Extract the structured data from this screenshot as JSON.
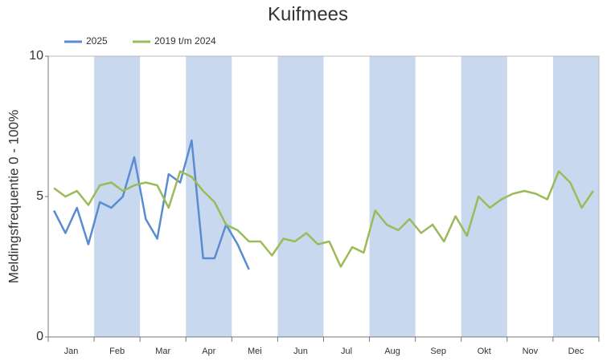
{
  "chart_data": {
    "type": "line",
    "title": "Kuifmees",
    "y_label": "Meldingsfrequentie 0 - 100%",
    "categories": [
      null,
      null,
      "Jan",
      null,
      null,
      null,
      "Feb",
      null,
      null,
      null,
      "Mar",
      null,
      null,
      null,
      "Apr",
      null,
      null,
      null,
      "Mei",
      null,
      null,
      null,
      "Jun",
      null,
      null,
      null,
      "Jul",
      null,
      null,
      null,
      "Aug",
      null,
      null,
      null,
      "Sep",
      null,
      null,
      null,
      "Okt",
      null,
      null,
      null,
      "Nov",
      null,
      null,
      null,
      "Dec",
      null
    ],
    "series": [
      {
        "name": "2025",
        "color": "#5b8bd0",
        "values": [
          4.5,
          3.7,
          4.6,
          3.3,
          4.8,
          4.6,
          5.0,
          6.4,
          4.2,
          3.5,
          5.8,
          5.5,
          7.0,
          2.8,
          2.8,
          4.0,
          3.3,
          2.4,
          null,
          null,
          null,
          null,
          null,
          null,
          null,
          null,
          null,
          null,
          null,
          null,
          null,
          null,
          null,
          null,
          null,
          null,
          null,
          null,
          null,
          null,
          null,
          null,
          null,
          null,
          null,
          null,
          null,
          null
        ]
      },
      {
        "name": "2019 t/m 2024",
        "color": "#9bbb59",
        "values": [
          5.3,
          5.0,
          5.2,
          4.7,
          5.4,
          5.5,
          5.2,
          5.4,
          5.5,
          5.4,
          4.6,
          5.9,
          5.7,
          5.2,
          4.8,
          4.0,
          3.8,
          3.4,
          3.4,
          2.9,
          3.5,
          3.4,
          3.7,
          3.3,
          3.4,
          2.5,
          3.2,
          3.0,
          4.5,
          4.0,
          3.8,
          4.2,
          3.7,
          4.0,
          3.4,
          4.3,
          3.6,
          5.0,
          4.6,
          4.9,
          5.1,
          5.2,
          5.1,
          4.9,
          5.9,
          5.5,
          4.6,
          5.2
        ]
      }
    ],
    "ylim": [
      0,
      10
    ],
    "yticks": [
      0,
      5,
      10
    ],
    "grid": false,
    "legend": "top-left"
  }
}
